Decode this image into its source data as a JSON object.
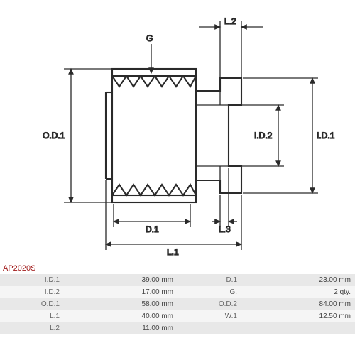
{
  "part_number": "AP2020S",
  "diagram": {
    "type": "engineering-drawing",
    "stroke": "#2a2a2a",
    "stroke_width": 1.3,
    "stroke_heavy": 2.1,
    "arrow_fill": "#2a2a2a",
    "labels": {
      "G": "G",
      "OD1": "O.D.1",
      "L1": "L.1",
      "L2": "L.2",
      "L3": "L.3",
      "D1": "D.1",
      "ID1": "I.D.1",
      "ID2": "I.D.2"
    }
  },
  "specs": [
    {
      "l1": "I.D.1",
      "v1": "39.00 mm",
      "l2": "D.1",
      "v2": "23.00 mm"
    },
    {
      "l1": "I.D.2",
      "v1": "17.00 mm",
      "l2": "G.",
      "v2": "2 qty."
    },
    {
      "l1": "O.D.1",
      "v1": "58.00 mm",
      "l2": "O.D.2",
      "v2": "84.00 mm"
    },
    {
      "l1": "L.1",
      "v1": "40.00 mm",
      "l2": "W.1",
      "v2": "12.50 mm"
    },
    {
      "l1": "L.2",
      "v1": "11.00 mm",
      "l2": "",
      "v2": ""
    }
  ]
}
